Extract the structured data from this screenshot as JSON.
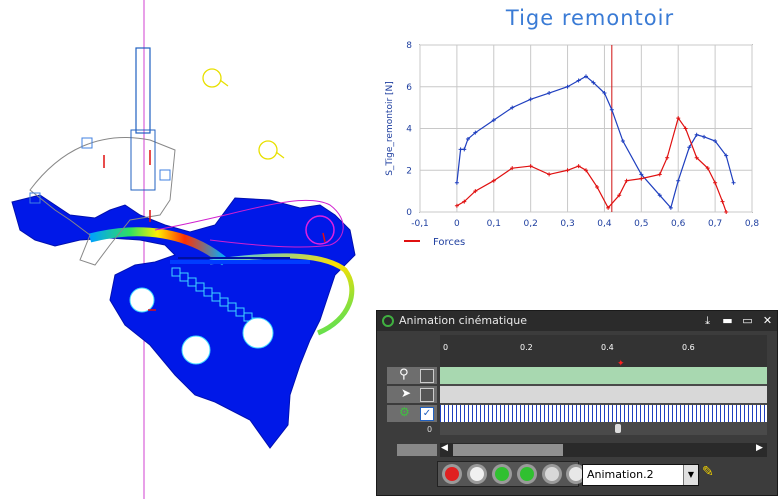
{
  "chart_data": {
    "type": "line",
    "title": "Tige  remontoir",
    "ylabel": "S_Tige_remontoir [N]",
    "xlabel": "",
    "xlim": [
      -0.1,
      0.8
    ],
    "ylim": [
      0,
      8
    ],
    "x_ticks": [
      "-0,1",
      "0",
      "0,1",
      "0,2",
      "0,3",
      "0,4",
      "0,5",
      "0,6",
      "0,7",
      "0,8"
    ],
    "y_ticks": [
      "0",
      "2",
      "4",
      "6",
      "8"
    ],
    "cursor_x": 0.42,
    "grid": true,
    "legend": {
      "label": "Forces",
      "placement": "bottom-left"
    },
    "series": [
      {
        "color": "#1f3fbf",
        "x": [
          0.0,
          0.01,
          0.02,
          0.03,
          0.05,
          0.1,
          0.15,
          0.2,
          0.25,
          0.3,
          0.33,
          0.35,
          0.37,
          0.4,
          0.42,
          0.45,
          0.5,
          0.55,
          0.58,
          0.6,
          0.63,
          0.65,
          0.67,
          0.7,
          0.73,
          0.75
        ],
        "y": [
          1.4,
          3.0,
          3.0,
          3.5,
          3.8,
          4.4,
          5.0,
          5.4,
          5.7,
          6.0,
          6.3,
          6.5,
          6.2,
          5.7,
          4.9,
          3.4,
          1.8,
          0.8,
          0.2,
          1.5,
          3.1,
          3.7,
          3.6,
          3.4,
          2.7,
          1.4
        ]
      },
      {
        "color": "#e01010",
        "x": [
          0.0,
          0.02,
          0.05,
          0.1,
          0.15,
          0.2,
          0.25,
          0.3,
          0.33,
          0.35,
          0.38,
          0.41,
          0.44,
          0.46,
          0.5,
          0.55,
          0.57,
          0.6,
          0.62,
          0.65,
          0.68,
          0.7,
          0.72,
          0.73
        ],
        "y": [
          0.3,
          0.5,
          1.0,
          1.5,
          2.1,
          2.2,
          1.8,
          2.0,
          2.2,
          2.0,
          1.2,
          0.2,
          0.8,
          1.5,
          1.6,
          1.8,
          2.6,
          4.5,
          4.0,
          2.6,
          2.1,
          1.4,
          0.5,
          0.0
        ]
      }
    ]
  },
  "panel": {
    "title": "Animation cinématique",
    "timeline_ticks": [
      "0",
      "0.2",
      "0.4",
      "0.6"
    ],
    "row_zero_label": "0",
    "animation_name": "Animation.2",
    "colors": {
      "track_green": "#a8d8b0",
      "track_blue": "#1f3fbf",
      "panel_bg": "#3c3c3c"
    }
  }
}
